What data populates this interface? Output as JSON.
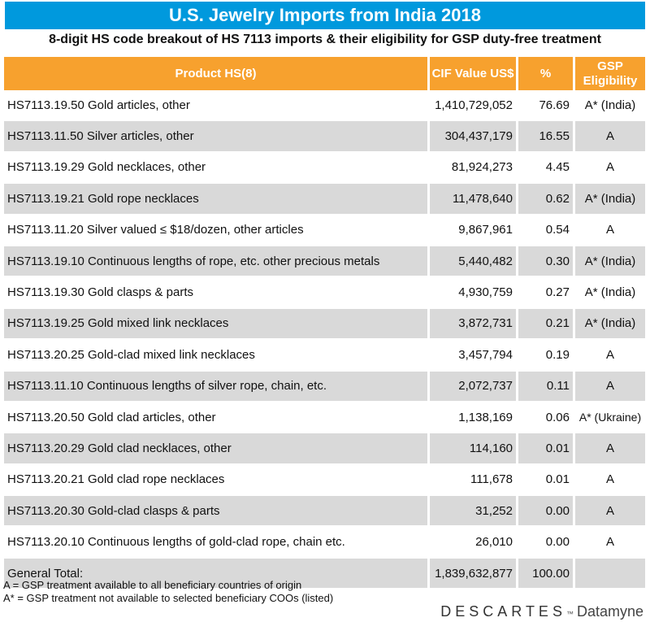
{
  "title": "U.S. Jewelry Imports from India 2018",
  "subtitle": "8-digit HS code breakout of HS 7113 imports & their eligibility for GSP duty-free treatment",
  "chart_data": {
    "type": "table",
    "columns": [
      "Product HS(8)",
      "CIF Value US$",
      "%",
      "GSP Eligibility"
    ],
    "rows": [
      {
        "product": "HS7113.19.50 Gold articles, other",
        "value": "1,410,729,052",
        "pct": "76.69",
        "gsp": "A* (India)"
      },
      {
        "product": "HS7113.11.50 Silver articles, other",
        "value": "304,437,179",
        "pct": "16.55",
        "gsp": "A"
      },
      {
        "product": "HS7113.19.29 Gold necklaces, other",
        "value": "81,924,273",
        "pct": "4.45",
        "gsp": "A"
      },
      {
        "product": "HS7113.19.21 Gold rope necklaces",
        "value": "11,478,640",
        "pct": "0.62",
        "gsp": "A* (India)"
      },
      {
        "product": "HS7113.11.20 Silver valued ≤ $18/dozen, other articles",
        "value": "9,867,961",
        "pct": "0.54",
        "gsp": "A"
      },
      {
        "product": "HS7113.19.10 Continuous lengths of rope, etc. other precious metals",
        "value": "5,440,482",
        "pct": "0.30",
        "gsp": "A* (India)"
      },
      {
        "product": "HS7113.19.30 Gold clasps & parts",
        "value": "4,930,759",
        "pct": "0.27",
        "gsp": "A* (India)"
      },
      {
        "product": "HS7113.19.25 Gold mixed link necklaces",
        "value": "3,872,731",
        "pct": "0.21",
        "gsp": "A* (India)"
      },
      {
        "product": "HS7113.20.25 Gold-clad mixed link necklaces",
        "value": "3,457,794",
        "pct": "0.19",
        "gsp": "A"
      },
      {
        "product": "HS7113.11.10 Continuous lengths of silver rope, chain, etc.",
        "value": "2,072,737",
        "pct": "0.11",
        "gsp": "A"
      },
      {
        "product": "HS7113.20.50 Gold clad articles, other",
        "value": "1,138,169",
        "pct": "0.06",
        "gsp": "A* (Ukraine)"
      },
      {
        "product": "HS7113.20.29 Gold clad necklaces, other",
        "value": "114,160",
        "pct": "0.01",
        "gsp": "A"
      },
      {
        "product": "HS7113.20.21 Gold clad rope necklaces",
        "value": "111,678",
        "pct": "0.01",
        "gsp": "A"
      },
      {
        "product": "HS7113.20.30 Gold-clad clasps & parts",
        "value": "31,252",
        "pct": "0.00",
        "gsp": "A"
      },
      {
        "product": "HS7113.20.10 Continuous lengths of gold-clad rope, chain etc.",
        "value": "26,010",
        "pct": "0.00",
        "gsp": "A"
      }
    ],
    "total": {
      "label": "General Total:",
      "value": "1,839,632,877",
      "pct": "100.00",
      "gsp": ""
    }
  },
  "notes": [
    "A = GSP treatment available to all beneficiary countries of origin",
    "A* = GSP treatment not available to selected beneficiary COOs (listed)"
  ],
  "logo": {
    "brand": "DESCARTES",
    "tm": "™",
    "product": "Datamyne"
  },
  "colors": {
    "title_bg": "#0099dd",
    "header_bg": "#f7a12e",
    "shade": "#d9d9d9"
  }
}
